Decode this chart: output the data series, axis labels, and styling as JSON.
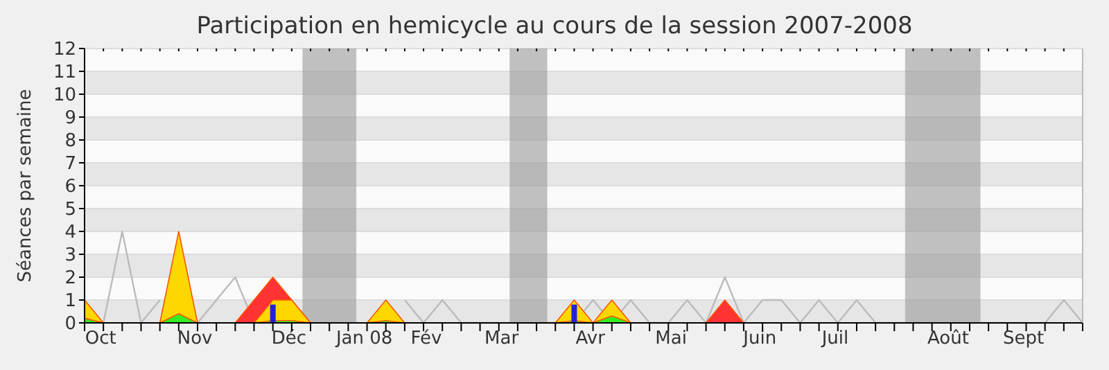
{
  "chart_data": {
    "type": "area",
    "title": "Participation en hemicycle au cours de la session 2007-2008",
    "ylabel": "Séances par semaine",
    "x": [
      "2007-10-01",
      "2007-10-08",
      "2007-10-15",
      "2007-10-22",
      "2007-10-29",
      "2007-11-05",
      "2007-11-12",
      "2007-11-19",
      "2007-11-26",
      "2007-12-03",
      "2007-12-10",
      "2007-12-17",
      "2007-12-24",
      "2007-12-31",
      "2008-01-07",
      "2008-01-14",
      "2008-01-21",
      "2008-01-28",
      "2008-02-04",
      "2008-02-11",
      "2008-02-18",
      "2008-02-25",
      "2008-03-03",
      "2008-03-10",
      "2008-03-17",
      "2008-03-24",
      "2008-03-31",
      "2008-04-07",
      "2008-04-14",
      "2008-04-21",
      "2008-04-28",
      "2008-05-05",
      "2008-05-12",
      "2008-05-19",
      "2008-05-26",
      "2008-06-02",
      "2008-06-09",
      "2008-06-16",
      "2008-06-23",
      "2008-06-30",
      "2008-07-07",
      "2008-07-14",
      "2008-07-21",
      "2008-07-28",
      "2008-08-04",
      "2008-08-11",
      "2008-08-18",
      "2008-08-25",
      "2008-09-01",
      "2008-09-08",
      "2008-09-15",
      "2008-09-22",
      "2008-09-29",
      "2008-10-06"
    ],
    "xlim": [
      "2007-10-01",
      "2008-10-06"
    ],
    "xticks": [
      {
        "value": "2007-10-01",
        "label": null
      },
      {
        "value": "2007-10-07",
        "label": "Oct"
      },
      {
        "value": "2007-10-08",
        "label": null
      },
      {
        "value": "2007-10-15",
        "label": null
      },
      {
        "value": "2007-10-22",
        "label": null
      },
      {
        "value": "2007-10-29",
        "label": null
      },
      {
        "value": "2007-11-05",
        "label": null
      },
      {
        "value": "2007-11-11",
        "label": "Nov"
      },
      {
        "value": "2007-11-12",
        "label": null
      },
      {
        "value": "2007-11-19",
        "label": null
      },
      {
        "value": "2007-11-26",
        "label": null
      },
      {
        "value": "2007-12-03",
        "label": null
      },
      {
        "value": "2007-12-10",
        "label": null
      },
      {
        "value": "2007-12-16",
        "label": "Déc"
      },
      {
        "value": "2007-12-17",
        "label": null
      },
      {
        "value": "2007-12-24",
        "label": null
      },
      {
        "value": "2007-12-31",
        "label": null
      },
      {
        "value": "2008-01-07",
        "label": null
      },
      {
        "value": "2008-01-13",
        "label": "Jan 08"
      },
      {
        "value": "2008-01-14",
        "label": null
      },
      {
        "value": "2008-01-21",
        "label": null
      },
      {
        "value": "2008-01-28",
        "label": null
      },
      {
        "value": "2008-02-04",
        "label": null
      },
      {
        "value": "2008-02-05",
        "label": "Fév"
      },
      {
        "value": "2008-02-11",
        "label": null
      },
      {
        "value": "2008-02-18",
        "label": null
      },
      {
        "value": "2008-02-25",
        "label": null
      },
      {
        "value": "2008-03-03",
        "label": null
      },
      {
        "value": "2008-03-04",
        "label": "Mar"
      },
      {
        "value": "2008-03-10",
        "label": null
      },
      {
        "value": "2008-03-17",
        "label": null
      },
      {
        "value": "2008-03-24",
        "label": null
      },
      {
        "value": "2008-03-31",
        "label": null
      },
      {
        "value": "2008-04-06",
        "label": "Avr"
      },
      {
        "value": "2008-04-07",
        "label": null
      },
      {
        "value": "2008-04-14",
        "label": null
      },
      {
        "value": "2008-04-21",
        "label": null
      },
      {
        "value": "2008-04-28",
        "label": null
      },
      {
        "value": "2008-05-05",
        "label": null
      },
      {
        "value": "2008-05-06",
        "label": "Mai"
      },
      {
        "value": "2008-05-12",
        "label": null
      },
      {
        "value": "2008-05-19",
        "label": null
      },
      {
        "value": "2008-05-26",
        "label": null
      },
      {
        "value": "2008-06-02",
        "label": null
      },
      {
        "value": "2008-06-08",
        "label": "Juin"
      },
      {
        "value": "2008-06-09",
        "label": null
      },
      {
        "value": "2008-06-16",
        "label": null
      },
      {
        "value": "2008-06-23",
        "label": null
      },
      {
        "value": "2008-06-30",
        "label": null
      },
      {
        "value": "2008-07-06",
        "label": "Juil"
      },
      {
        "value": "2008-07-07",
        "label": null
      },
      {
        "value": "2008-07-14",
        "label": null
      },
      {
        "value": "2008-07-21",
        "label": null
      },
      {
        "value": "2008-07-28",
        "label": null
      },
      {
        "value": "2008-08-04",
        "label": null
      },
      {
        "value": "2008-08-11",
        "label": null
      },
      {
        "value": "2008-08-17",
        "label": "Août"
      },
      {
        "value": "2008-08-18",
        "label": null
      },
      {
        "value": "2008-08-25",
        "label": null
      },
      {
        "value": "2008-09-01",
        "label": null
      },
      {
        "value": "2008-09-08",
        "label": null
      },
      {
        "value": "2008-09-14",
        "label": "Sept"
      },
      {
        "value": "2008-09-15",
        "label": null
      },
      {
        "value": "2008-09-22",
        "label": null
      },
      {
        "value": "2008-09-29",
        "label": null
      },
      {
        "value": "2008-10-06",
        "label": null
      }
    ],
    "ylim": [
      0,
      12
    ],
    "yticks": [
      0,
      1,
      2,
      3,
      4,
      5,
      6,
      7,
      8,
      9,
      10,
      11,
      12
    ],
    "grid": "y",
    "bands": [
      {
        "axis": "x",
        "from": "2007-12-21",
        "to": "2008-01-10",
        "color": "#999999"
      },
      {
        "axis": "x",
        "from": "2008-03-07",
        "to": "2008-03-21",
        "color": "#999999"
      },
      {
        "axis": "x",
        "from": "2008-08-01",
        "to": "2008-08-29",
        "color": "#999999"
      }
    ],
    "series": [
      {
        "type": "line",
        "color": "#bbbbbb",
        "values": [
          null,
          0,
          4,
          0,
          1,
          null,
          0,
          1,
          2,
          0,
          null,
          null,
          null,
          null,
          null,
          null,
          null,
          1,
          0,
          1,
          0,
          0,
          0,
          0,
          0,
          0,
          0,
          1,
          0,
          1,
          0,
          0,
          1,
          0,
          2,
          0,
          1,
          1,
          0,
          1,
          0,
          1,
          0,
          0,
          0,
          0,
          0,
          0,
          0,
          0,
          0,
          0,
          1,
          0
        ]
      },
      {
        "color": "#ff3333",
        "values": [
          null,
          null,
          null,
          null,
          null,
          null,
          null,
          null,
          0,
          1,
          2,
          1,
          0,
          null,
          null,
          null,
          null,
          null,
          null,
          null,
          null,
          null,
          null,
          null,
          null,
          null,
          null,
          null,
          null,
          null,
          null,
          null,
          null,
          0,
          1,
          0,
          null,
          null,
          null,
          null,
          null,
          null,
          null,
          null,
          null,
          null,
          null,
          null,
          null,
          null,
          null,
          null,
          null,
          null
        ]
      },
      {
        "color": "#ffd700",
        "values": [
          1,
          0,
          null,
          null,
          0,
          4,
          0,
          null,
          null,
          0,
          1,
          1,
          0,
          null,
          null,
          0,
          1,
          0,
          null,
          null,
          null,
          null,
          null,
          null,
          null,
          0,
          1,
          0,
          1,
          0,
          null,
          null,
          null,
          null,
          null,
          null,
          null,
          null,
          null,
          null,
          null,
          null,
          null,
          null,
          null,
          null,
          null,
          null,
          null,
          null,
          null,
          null,
          null,
          null
        ]
      },
      {
        "color": "#33ee22",
        "values": [
          0.2,
          0,
          null,
          null,
          0,
          0.4,
          0,
          null,
          null,
          0,
          0.1,
          0.1,
          0,
          null,
          null,
          0,
          0.1,
          0,
          null,
          null,
          null,
          null,
          null,
          null,
          null,
          0,
          0.1,
          0,
          0.3,
          0,
          null,
          null,
          null,
          null,
          null,
          null,
          null,
          null,
          null,
          null,
          null,
          null,
          null,
          null,
          null,
          null,
          null,
          null,
          null,
          null,
          null,
          null,
          null,
          null
        ]
      },
      {
        "type": "bar",
        "color": "#2222dd",
        "values": [
          null,
          null,
          null,
          null,
          null,
          null,
          null,
          null,
          null,
          null,
          0.8,
          null,
          null,
          null,
          null,
          null,
          null,
          null,
          null,
          null,
          null,
          null,
          null,
          null,
          null,
          null,
          0.8,
          null,
          null,
          null,
          null,
          null,
          null,
          null,
          null,
          null,
          null,
          null,
          null,
          null,
          null,
          null,
          null,
          null,
          null,
          null,
          null,
          null,
          null,
          null,
          null,
          null,
          null,
          null
        ]
      }
    ]
  }
}
